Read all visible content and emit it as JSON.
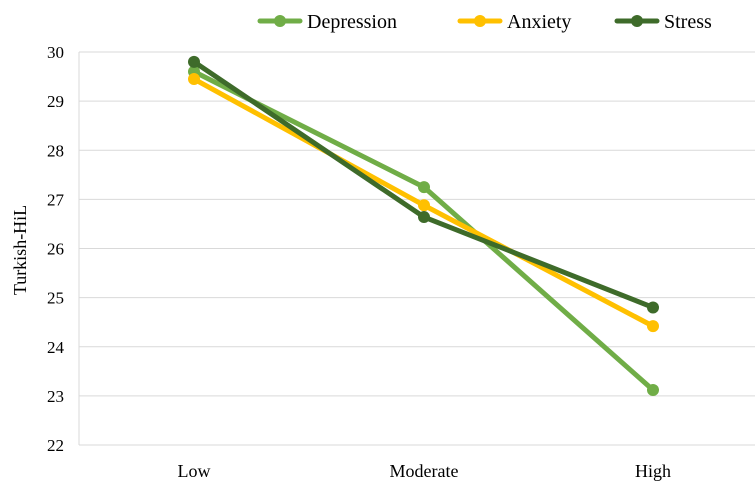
{
  "chart_data": {
    "type": "line",
    "title": "",
    "xlabel": "",
    "ylabel": "Turkish-HiL",
    "categories": [
      "Low",
      "Moderate",
      "High"
    ],
    "ylim": [
      22,
      30
    ],
    "yticks": [
      22,
      23,
      24,
      25,
      26,
      27,
      28,
      29,
      30
    ],
    "grid": true,
    "legend_position": "top-right",
    "series": [
      {
        "name": "Depression",
        "color": "#70ad47",
        "values": [
          29.6,
          27.25,
          23.12
        ]
      },
      {
        "name": "Anxiety",
        "color": "#ffc000",
        "values": [
          29.45,
          26.88,
          24.42
        ]
      },
      {
        "name": "Stress",
        "color": "#3e6b2a",
        "values": [
          29.8,
          26.64,
          24.8
        ]
      }
    ]
  }
}
